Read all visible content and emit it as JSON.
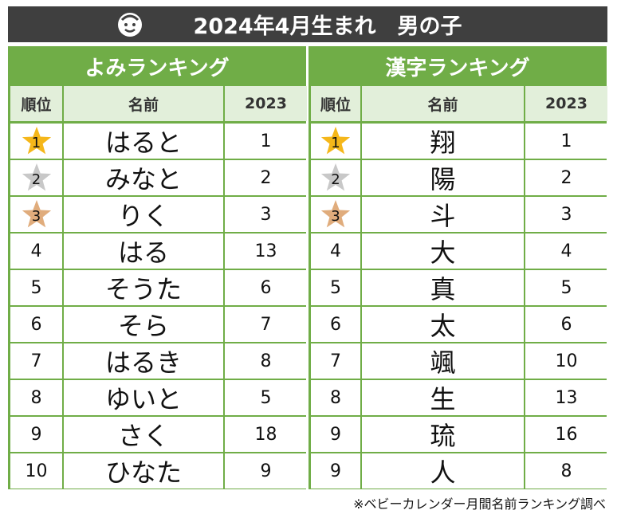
{
  "header": {
    "title": "2024年4月生まれ　男の子"
  },
  "tables": [
    {
      "title": "よみランキング",
      "columns": [
        "順位",
        "名前",
        "2023"
      ],
      "rows": [
        [
          1,
          "はると",
          1
        ],
        [
          2,
          "みなと",
          2
        ],
        [
          3,
          "りく",
          3
        ],
        [
          4,
          "はる",
          13
        ],
        [
          5,
          "そうた",
          6
        ],
        [
          6,
          "そら",
          7
        ],
        [
          7,
          "はるき",
          8
        ],
        [
          8,
          "ゆいと",
          5
        ],
        [
          9,
          "さく",
          18
        ],
        [
          10,
          "ひなた",
          9
        ]
      ]
    },
    {
      "title": "漢字ランキング",
      "columns": [
        "順位",
        "名前",
        "2023"
      ],
      "rows": [
        [
          1,
          "翔",
          1
        ],
        [
          2,
          "陽",
          2
        ],
        [
          3,
          "斗",
          3
        ],
        [
          4,
          "大",
          4
        ],
        [
          5,
          "真",
          5
        ],
        [
          6,
          "太",
          6
        ],
        [
          7,
          "颯",
          10
        ],
        [
          8,
          "生",
          13
        ],
        [
          9,
          "琉",
          16
        ],
        [
          9,
          "人",
          8
        ]
      ]
    }
  ],
  "footer": "※ベビーカレンダー月間名前ランキング調べ"
}
